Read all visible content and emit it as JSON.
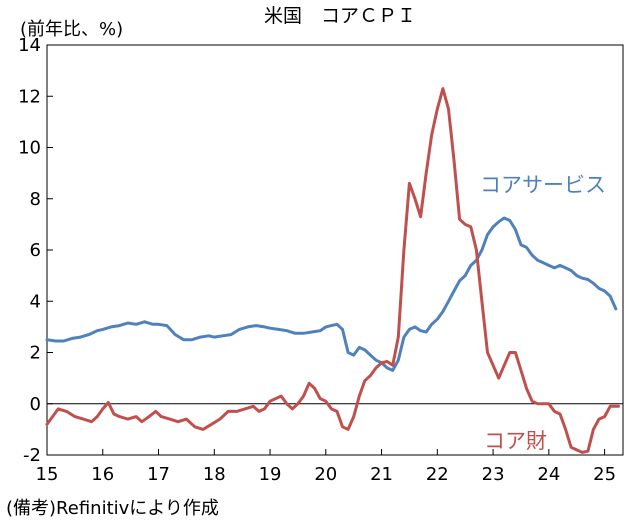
{
  "chart_data": {
    "type": "line",
    "title": "米国　コアＣＰＩ",
    "unit_label": "(前年比、%)",
    "source_note": "(備考)Refinitivにより作成",
    "xlabel": "",
    "ylabel": "",
    "x_tick_labels": [
      "15",
      "16",
      "17",
      "18",
      "19",
      "20",
      "21",
      "22",
      "23",
      "24",
      "25"
    ],
    "x_tick_values": [
      2015,
      2016,
      2017,
      2018,
      2019,
      2020,
      2021,
      2022,
      2023,
      2024,
      2025
    ],
    "xlim": [
      2015.0,
      2025.33
    ],
    "ylim": [
      -2,
      14
    ],
    "y_ticks": [
      -2,
      0,
      2,
      4,
      6,
      8,
      10,
      12,
      14
    ],
    "grid": false,
    "series": [
      {
        "name": "コアサービス",
        "color": "#4f81bd",
        "label_position": "right",
        "points": [
          [
            2015.0,
            2.5
          ],
          [
            2015.15,
            2.45
          ],
          [
            2015.3,
            2.45
          ],
          [
            2015.45,
            2.55
          ],
          [
            2015.6,
            2.6
          ],
          [
            2015.75,
            2.7
          ],
          [
            2015.9,
            2.85
          ],
          [
            2016.0,
            2.9
          ],
          [
            2016.15,
            3.0
          ],
          [
            2016.3,
            3.05
          ],
          [
            2016.45,
            3.15
          ],
          [
            2016.6,
            3.1
          ],
          [
            2016.75,
            3.2
          ],
          [
            2016.9,
            3.1
          ],
          [
            2017.0,
            3.1
          ],
          [
            2017.15,
            3.05
          ],
          [
            2017.3,
            2.7
          ],
          [
            2017.45,
            2.5
          ],
          [
            2017.6,
            2.5
          ],
          [
            2017.75,
            2.6
          ],
          [
            2017.9,
            2.65
          ],
          [
            2018.0,
            2.6
          ],
          [
            2018.15,
            2.65
          ],
          [
            2018.3,
            2.7
          ],
          [
            2018.45,
            2.9
          ],
          [
            2018.6,
            3.0
          ],
          [
            2018.75,
            3.05
          ],
          [
            2018.9,
            3.0
          ],
          [
            2019.0,
            2.95
          ],
          [
            2019.15,
            2.9
          ],
          [
            2019.3,
            2.85
          ],
          [
            2019.45,
            2.75
          ],
          [
            2019.6,
            2.75
          ],
          [
            2019.75,
            2.8
          ],
          [
            2019.9,
            2.85
          ],
          [
            2020.0,
            3.0
          ],
          [
            2020.1,
            3.05
          ],
          [
            2020.2,
            3.1
          ],
          [
            2020.3,
            2.9
          ],
          [
            2020.4,
            2.0
          ],
          [
            2020.5,
            1.9
          ],
          [
            2020.6,
            2.2
          ],
          [
            2020.7,
            2.1
          ],
          [
            2020.8,
            1.9
          ],
          [
            2020.9,
            1.7
          ],
          [
            2021.0,
            1.6
          ],
          [
            2021.1,
            1.4
          ],
          [
            2021.2,
            1.3
          ],
          [
            2021.3,
            1.7
          ],
          [
            2021.4,
            2.6
          ],
          [
            2021.5,
            2.9
          ],
          [
            2021.6,
            3.0
          ],
          [
            2021.7,
            2.85
          ],
          [
            2021.8,
            2.8
          ],
          [
            2021.9,
            3.1
          ],
          [
            2022.0,
            3.3
          ],
          [
            2022.1,
            3.6
          ],
          [
            2022.2,
            4.0
          ],
          [
            2022.3,
            4.4
          ],
          [
            2022.4,
            4.8
          ],
          [
            2022.5,
            5.0
          ],
          [
            2022.6,
            5.4
          ],
          [
            2022.7,
            5.6
          ],
          [
            2022.8,
            6.0
          ],
          [
            2022.9,
            6.6
          ],
          [
            2023.0,
            6.9
          ],
          [
            2023.1,
            7.1
          ],
          [
            2023.2,
            7.25
          ],
          [
            2023.3,
            7.15
          ],
          [
            2023.4,
            6.8
          ],
          [
            2023.5,
            6.2
          ],
          [
            2023.6,
            6.1
          ],
          [
            2023.7,
            5.8
          ],
          [
            2023.8,
            5.6
          ],
          [
            2023.9,
            5.5
          ],
          [
            2024.0,
            5.4
          ],
          [
            2024.1,
            5.3
          ],
          [
            2024.2,
            5.4
          ],
          [
            2024.3,
            5.3
          ],
          [
            2024.4,
            5.2
          ],
          [
            2024.5,
            5.0
          ],
          [
            2024.6,
            4.9
          ],
          [
            2024.7,
            4.85
          ],
          [
            2024.8,
            4.7
          ],
          [
            2024.9,
            4.5
          ],
          [
            2025.0,
            4.4
          ],
          [
            2025.1,
            4.2
          ],
          [
            2025.2,
            3.7
          ]
        ]
      },
      {
        "name": "コア財",
        "color": "#c0504d",
        "label_position": "bottom-right",
        "points": [
          [
            2015.0,
            -0.8
          ],
          [
            2015.1,
            -0.5
          ],
          [
            2015.2,
            -0.2
          ],
          [
            2015.35,
            -0.3
          ],
          [
            2015.5,
            -0.5
          ],
          [
            2015.65,
            -0.6
          ],
          [
            2015.8,
            -0.7
          ],
          [
            2015.9,
            -0.5
          ],
          [
            2016.0,
            -0.2
          ],
          [
            2016.1,
            0.05
          ],
          [
            2016.2,
            -0.4
          ],
          [
            2016.3,
            -0.5
          ],
          [
            2016.45,
            -0.6
          ],
          [
            2016.6,
            -0.5
          ],
          [
            2016.7,
            -0.7
          ],
          [
            2016.8,
            -0.55
          ],
          [
            2016.95,
            -0.3
          ],
          [
            2017.05,
            -0.5
          ],
          [
            2017.2,
            -0.6
          ],
          [
            2017.35,
            -0.7
          ],
          [
            2017.5,
            -0.6
          ],
          [
            2017.65,
            -0.9
          ],
          [
            2017.8,
            -1.0
          ],
          [
            2017.95,
            -0.8
          ],
          [
            2018.1,
            -0.6
          ],
          [
            2018.25,
            -0.3
          ],
          [
            2018.4,
            -0.3
          ],
          [
            2018.55,
            -0.2
          ],
          [
            2018.7,
            -0.1
          ],
          [
            2018.8,
            -0.3
          ],
          [
            2018.9,
            -0.2
          ],
          [
            2019.0,
            0.1
          ],
          [
            2019.1,
            0.2
          ],
          [
            2019.2,
            0.3
          ],
          [
            2019.3,
            0.0
          ],
          [
            2019.4,
            -0.2
          ],
          [
            2019.5,
            0.0
          ],
          [
            2019.6,
            0.3
          ],
          [
            2019.7,
            0.8
          ],
          [
            2019.8,
            0.6
          ],
          [
            2019.9,
            0.2
          ],
          [
            2020.0,
            0.1
          ],
          [
            2020.1,
            -0.2
          ],
          [
            2020.2,
            -0.3
          ],
          [
            2020.3,
            -0.9
          ],
          [
            2020.4,
            -1.0
          ],
          [
            2020.5,
            -0.5
          ],
          [
            2020.6,
            0.3
          ],
          [
            2020.7,
            0.9
          ],
          [
            2020.8,
            1.1
          ],
          [
            2020.9,
            1.4
          ],
          [
            2021.0,
            1.6
          ],
          [
            2021.1,
            1.65
          ],
          [
            2021.2,
            1.5
          ],
          [
            2021.3,
            2.6
          ],
          [
            2021.4,
            6.0
          ],
          [
            2021.5,
            8.6
          ],
          [
            2021.6,
            8.0
          ],
          [
            2021.7,
            7.3
          ],
          [
            2021.8,
            9.0
          ],
          [
            2021.9,
            10.5
          ],
          [
            2022.0,
            11.5
          ],
          [
            2022.1,
            12.3
          ],
          [
            2022.2,
            11.5
          ],
          [
            2022.3,
            9.5
          ],
          [
            2022.4,
            7.2
          ],
          [
            2022.5,
            7.0
          ],
          [
            2022.6,
            6.9
          ],
          [
            2022.7,
            6.0
          ],
          [
            2022.8,
            4.0
          ],
          [
            2022.9,
            2.0
          ],
          [
            2023.0,
            1.5
          ],
          [
            2023.1,
            1.0
          ],
          [
            2023.2,
            1.5
          ],
          [
            2023.3,
            2.0
          ],
          [
            2023.4,
            2.0
          ],
          [
            2023.5,
            1.3
          ],
          [
            2023.6,
            0.6
          ],
          [
            2023.7,
            0.1
          ],
          [
            2023.8,
            0.0
          ],
          [
            2023.9,
            0.0
          ],
          [
            2024.0,
            0.0
          ],
          [
            2024.1,
            -0.3
          ],
          [
            2024.2,
            -0.4
          ],
          [
            2024.3,
            -1.0
          ],
          [
            2024.4,
            -1.7
          ],
          [
            2024.5,
            -1.8
          ],
          [
            2024.6,
            -1.9
          ],
          [
            2024.7,
            -1.85
          ],
          [
            2024.8,
            -1.0
          ],
          [
            2024.9,
            -0.6
          ],
          [
            2025.0,
            -0.5
          ],
          [
            2025.1,
            -0.1
          ],
          [
            2025.25,
            -0.1
          ]
        ]
      }
    ]
  }
}
